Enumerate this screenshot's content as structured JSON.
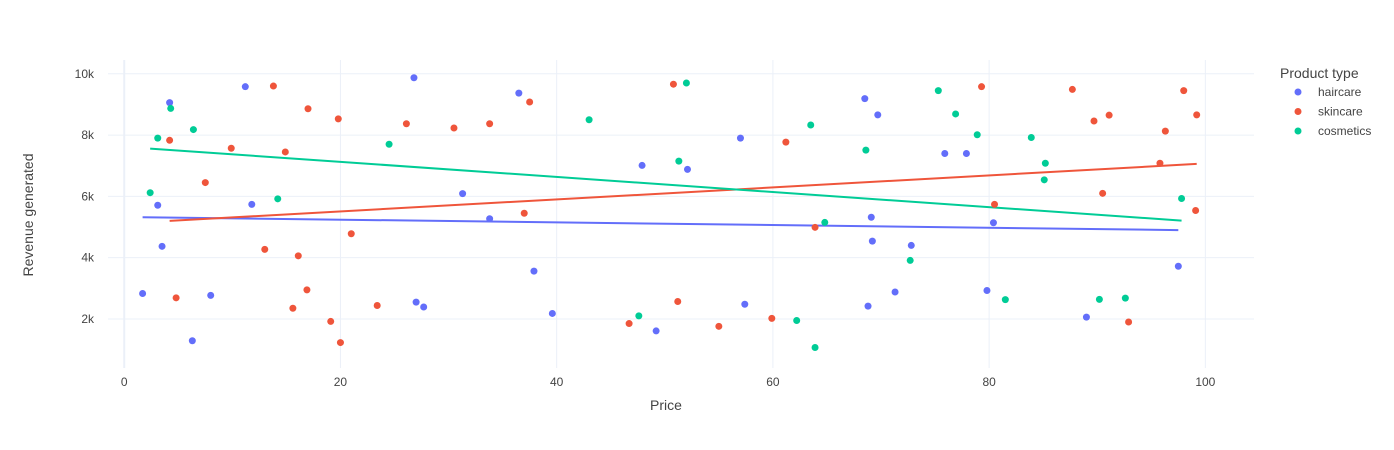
{
  "chart_data": {
    "type": "scatter",
    "xlabel": "Price",
    "ylabel": "Revenue generated",
    "xlim": [
      -1.5,
      104.5
    ],
    "ylim": [
      400,
      10450
    ],
    "x_ticks": [
      0,
      20,
      40,
      60,
      80,
      100
    ],
    "x_tick_labels": [
      "0",
      "20",
      "40",
      "60",
      "80",
      "100"
    ],
    "y_ticks": [
      2000,
      4000,
      6000,
      8000,
      10000
    ],
    "y_tick_labels": [
      "2k",
      "4k",
      "6k",
      "8k",
      "10k"
    ],
    "grid": true,
    "legend": {
      "title": "Product type",
      "placement": "right"
    },
    "series": [
      {
        "name": "haircare",
        "color": "#636efa",
        "points": [
          [
            1.7,
            2830
          ],
          [
            3.1,
            5710
          ],
          [
            3.5,
            4370
          ],
          [
            4.2,
            9060
          ],
          [
            6.3,
            1290
          ],
          [
            8.0,
            2770
          ],
          [
            11.2,
            9580
          ],
          [
            11.8,
            5740
          ],
          [
            26.8,
            9870
          ],
          [
            27.0,
            2550
          ],
          [
            27.7,
            2390
          ],
          [
            31.3,
            6090
          ],
          [
            33.8,
            5270
          ],
          [
            36.5,
            9370
          ],
          [
            37.9,
            3560
          ],
          [
            39.6,
            2180
          ],
          [
            47.9,
            7010
          ],
          [
            49.2,
            1610
          ],
          [
            52.1,
            6880
          ],
          [
            57.0,
            7900
          ],
          [
            57.4,
            2480
          ],
          [
            68.5,
            9190
          ],
          [
            68.8,
            2420
          ],
          [
            69.1,
            5320
          ],
          [
            69.2,
            4540
          ],
          [
            69.7,
            8660
          ],
          [
            71.3,
            2880
          ],
          [
            72.8,
            4400
          ],
          [
            75.9,
            7400
          ],
          [
            77.9,
            7400
          ],
          [
            79.8,
            2930
          ],
          [
            80.4,
            5140
          ],
          [
            89.0,
            2060
          ],
          [
            97.5,
            3720
          ]
        ],
        "trend": [
          [
            1.7,
            5320
          ],
          [
            97.5,
            4900
          ]
        ]
      },
      {
        "name": "skincare",
        "color": "#ef553b",
        "points": [
          [
            4.2,
            7830
          ],
          [
            4.8,
            2690
          ],
          [
            7.5,
            6450
          ],
          [
            9.9,
            7570
          ],
          [
            13.0,
            4270
          ],
          [
            13.8,
            9600
          ],
          [
            14.9,
            7450
          ],
          [
            15.6,
            2350
          ],
          [
            16.1,
            4060
          ],
          [
            16.9,
            2950
          ],
          [
            17.0,
            8860
          ],
          [
            19.1,
            1920
          ],
          [
            19.8,
            8530
          ],
          [
            20.0,
            1230
          ],
          [
            21.0,
            4780
          ],
          [
            23.4,
            2440
          ],
          [
            26.1,
            8370
          ],
          [
            30.5,
            8230
          ],
          [
            33.8,
            8370
          ],
          [
            37.0,
            5450
          ],
          [
            37.5,
            9080
          ],
          [
            46.7,
            1850
          ],
          [
            50.8,
            9660
          ],
          [
            51.2,
            2570
          ],
          [
            55.0,
            1760
          ],
          [
            59.9,
            2020
          ],
          [
            61.2,
            7770
          ],
          [
            63.9,
            4990
          ],
          [
            79.3,
            9580
          ],
          [
            80.5,
            5740
          ],
          [
            87.7,
            9490
          ],
          [
            89.7,
            8460
          ],
          [
            90.5,
            6100
          ],
          [
            91.1,
            8650
          ],
          [
            92.9,
            1900
          ],
          [
            95.8,
            7080
          ],
          [
            96.3,
            8130
          ],
          [
            98.0,
            9450
          ],
          [
            99.1,
            5540
          ],
          [
            99.2,
            8660
          ]
        ],
        "trend": [
          [
            4.2,
            5200
          ],
          [
            99.2,
            7060
          ]
        ]
      },
      {
        "name": "cosmetics",
        "color": "#00cc96",
        "points": [
          [
            2.4,
            6120
          ],
          [
            3.1,
            7900
          ],
          [
            4.3,
            8870
          ],
          [
            6.4,
            8180
          ],
          [
            14.2,
            5920
          ],
          [
            24.5,
            7700
          ],
          [
            43.0,
            8500
          ],
          [
            47.6,
            2100
          ],
          [
            51.3,
            7150
          ],
          [
            52.0,
            9700
          ],
          [
            62.2,
            1950
          ],
          [
            63.5,
            8330
          ],
          [
            63.9,
            1070
          ],
          [
            64.8,
            5150
          ],
          [
            68.6,
            7510
          ],
          [
            72.7,
            3910
          ],
          [
            75.3,
            9450
          ],
          [
            76.9,
            8690
          ],
          [
            78.9,
            8010
          ],
          [
            81.5,
            2630
          ],
          [
            83.9,
            7920
          ],
          [
            85.1,
            6540
          ],
          [
            85.2,
            7080
          ],
          [
            90.2,
            2640
          ],
          [
            92.6,
            2680
          ],
          [
            97.8,
            5930
          ]
        ],
        "trend": [
          [
            2.4,
            7560
          ],
          [
            97.8,
            5210
          ]
        ]
      }
    ]
  }
}
